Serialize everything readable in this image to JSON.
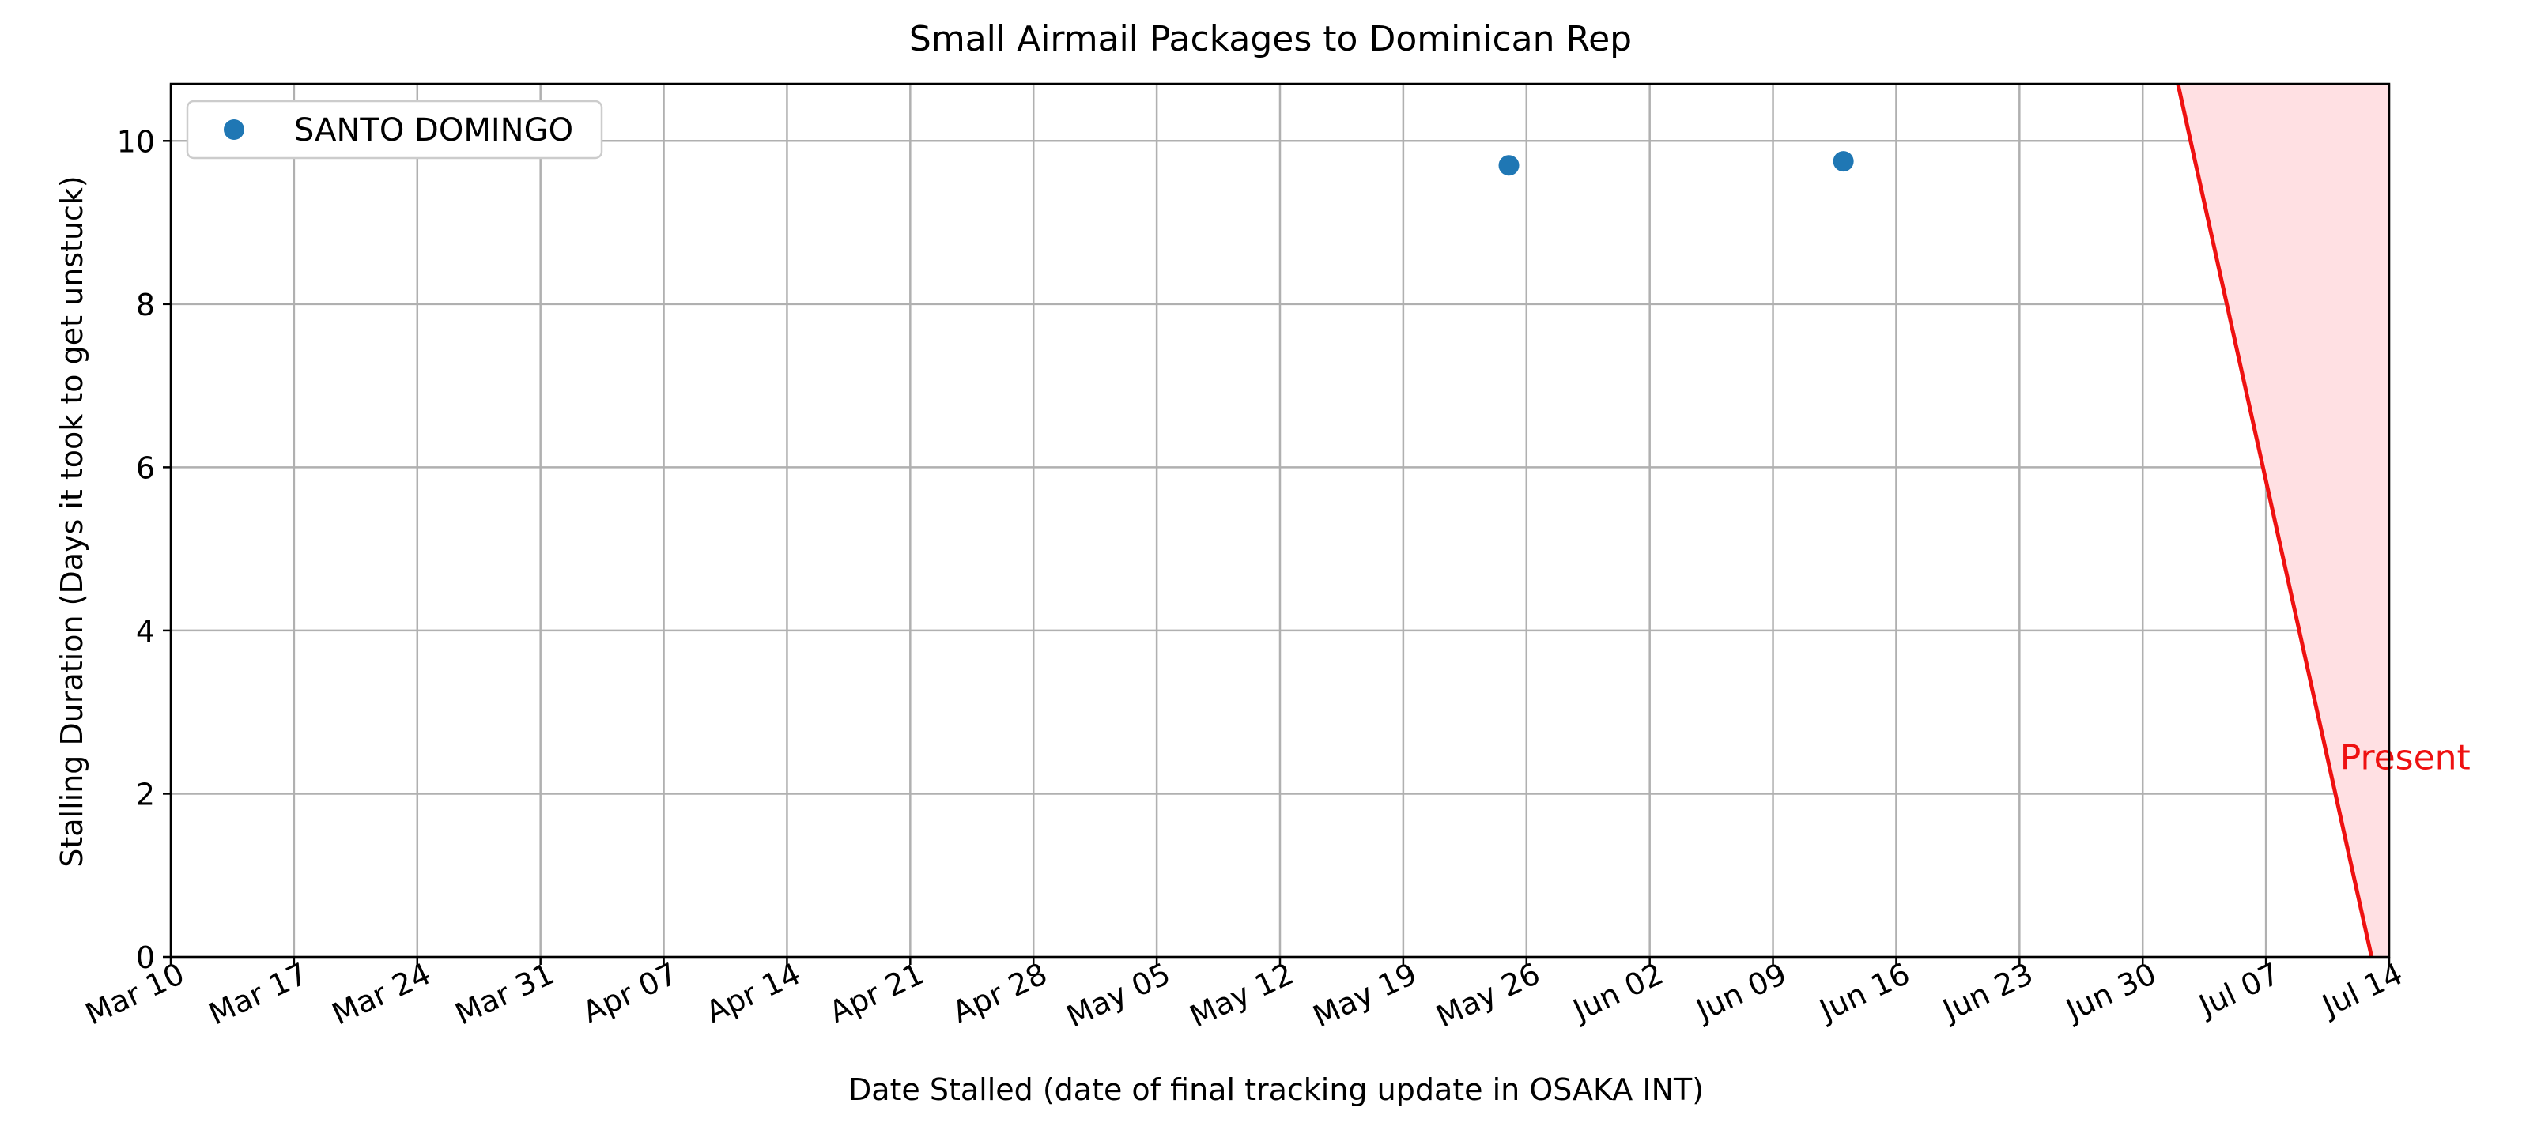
{
  "chart_data": {
    "type": "scatter",
    "title": "Small Airmail Packages to Dominican Rep",
    "xlabel": "Date Stalled (date of final tracking update in OSAKA INT)",
    "ylabel": "Stalling Duration (Days it took to get unstuck)",
    "xlim": [
      "2025-03-10",
      "2025-07-14"
    ],
    "ylim": [
      0,
      10.7
    ],
    "grid": true,
    "x_ticks": [
      "2025-03-10",
      "2025-03-17",
      "2025-03-24",
      "2025-03-31",
      "2025-04-07",
      "2025-04-14",
      "2025-04-21",
      "2025-04-28",
      "2025-05-05",
      "2025-05-12",
      "2025-05-19",
      "2025-05-26",
      "2025-06-02",
      "2025-06-09",
      "2025-06-16",
      "2025-06-23",
      "2025-06-30",
      "2025-07-07",
      "2025-07-14"
    ],
    "x_tick_labels": [
      "Mar 10",
      "Mar 17",
      "Mar 24",
      "Mar 31",
      "Apr 07",
      "Apr 14",
      "Apr 21",
      "Apr 28",
      "May 05",
      "May 12",
      "May 19",
      "May 26",
      "Jun 02",
      "Jun 09",
      "Jun 16",
      "Jun 23",
      "Jun 30",
      "Jul 07",
      "Jul 14"
    ],
    "y_ticks": [
      0,
      2,
      4,
      6,
      8,
      10
    ],
    "y_tick_labels": [
      "0",
      "2",
      "4",
      "6",
      "8",
      "10"
    ],
    "legend": {
      "position": "upper-left"
    },
    "series": [
      {
        "name": "SANTO DOMINGO",
        "color": "#1f77b4",
        "points": [
          {
            "x": "2025-05-25",
            "y": 9.7
          },
          {
            "x": "2025-06-13",
            "y": 9.75
          }
        ]
      }
    ],
    "present_line": {
      "label": "Present",
      "color": "#ee1111",
      "fill_color": "#ffe0e3",
      "from": {
        "x": "2025-07-02",
        "y": 10.7
      },
      "to": {
        "x": "2025-07-13",
        "y": 0
      },
      "region_end_x": "2025-07-14"
    }
  }
}
